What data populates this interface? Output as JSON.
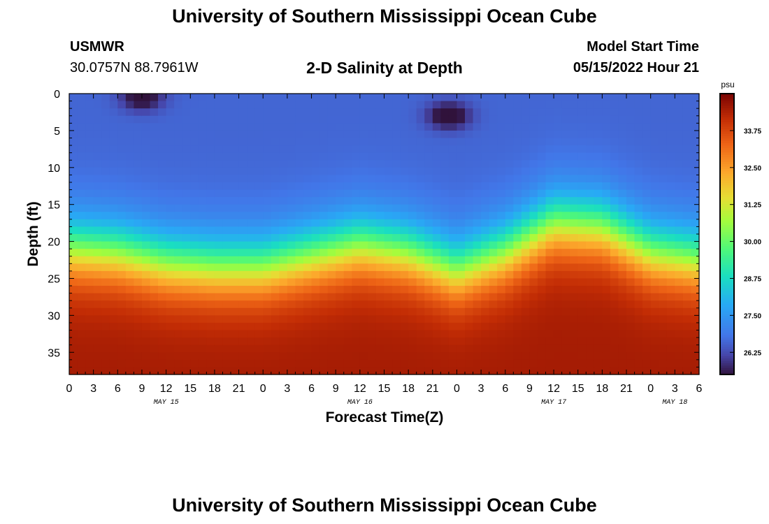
{
  "header": {
    "title": "University of Southern Mississippi Ocean Cube",
    "station": "USMWR",
    "coords": "30.0757N  88.7961W",
    "plot_title": "2-D Salinity at Depth",
    "model_start_label": "Model Start Time",
    "model_start_value": "05/15/2022 Hour 21"
  },
  "footer": {
    "title": "University of Southern Mississippi Ocean Cube"
  },
  "chart_data": {
    "type": "heatmap",
    "title": "2-D Salinity at Depth",
    "xlabel": "Forecast Time(Z)",
    "ylabel": "Depth (ft)",
    "x_unit": "hours from 2022-05-15 00Z",
    "xlim": [
      0,
      78
    ],
    "ylim": [
      0,
      38
    ],
    "y_inverted": true,
    "x_tick_labels": [
      "0",
      "3",
      "6",
      "9",
      "12",
      "15",
      "18",
      "21",
      "0",
      "3",
      "6",
      "9",
      "12",
      "15",
      "18",
      "21",
      "0",
      "3",
      "6",
      "9",
      "12",
      "15",
      "18",
      "21",
      "0",
      "3",
      "6"
    ],
    "date_labels": [
      {
        "x": 12,
        "label": "MAY 15"
      },
      {
        "x": 36,
        "label": "MAY 16"
      },
      {
        "x": 60,
        "label": "MAY 17"
      },
      {
        "x": 75,
        "label": "MAY 18"
      }
    ],
    "y_ticks": [
      0,
      5,
      10,
      15,
      20,
      25,
      30,
      35
    ],
    "colorbar": {
      "unit": "psu",
      "min": 25.5,
      "max": 35.0,
      "ticks": [
        "26.25",
        "27.50",
        "28.75",
        "30.00",
        "31.25",
        "32.50",
        "33.75"
      ],
      "tick_values": [
        26.25,
        27.5,
        28.75,
        30.0,
        31.25,
        32.5,
        33.75
      ]
    },
    "halocline_depth_ft_by_time": {
      "x": [
        0,
        6,
        12,
        18,
        24,
        30,
        36,
        42,
        48,
        54,
        60,
        66,
        72,
        78
      ],
      "depth": [
        21,
        21.5,
        23,
        23.5,
        23.5,
        22,
        20.5,
        21.5,
        24,
        21.5,
        17.5,
        18,
        21.5,
        22.5
      ]
    },
    "surface_minimum_events": [
      {
        "x": 9,
        "depth": 0.5,
        "min_psu": 25.6
      },
      {
        "x": 47,
        "depth": 3,
        "min_psu": 25.5
      }
    ],
    "bottom_salinity_psu": 34.5
  }
}
